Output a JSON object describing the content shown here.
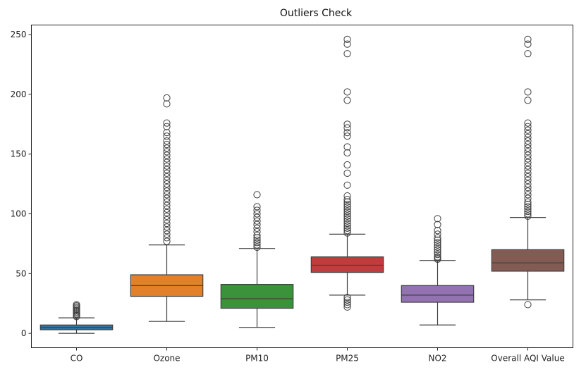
{
  "chart_data": {
    "type": "box",
    "title": "Outliers Check",
    "xlabel": "",
    "ylabel": "",
    "ylim": [
      -12,
      258
    ],
    "yticks": [
      0,
      50,
      100,
      150,
      200,
      250
    ],
    "grid": false,
    "categories": [
      "CO",
      "Ozone",
      "PM10",
      "PM25",
      "NO2",
      "Overall AQI Value"
    ],
    "colors": [
      "#3274a1",
      "#e1812c",
      "#3a923a",
      "#c03d3e",
      "#9372b2",
      "#845b53"
    ],
    "boxes": [
      {
        "name": "CO",
        "whislo": 0,
        "q1": 3,
        "med": 5,
        "q3": 7,
        "whishi": 13,
        "fliers": [
          14,
          15,
          16,
          17,
          18,
          19,
          20,
          21,
          22,
          23,
          24
        ]
      },
      {
        "name": "Ozone",
        "whislo": 10,
        "q1": 31,
        "med": 40,
        "q3": 49,
        "whishi": 74,
        "fliers": [
          77,
          80,
          83,
          86,
          89,
          92,
          95,
          98,
          101,
          104,
          107,
          110,
          113,
          116,
          119,
          122,
          125,
          128,
          131,
          134,
          137,
          140,
          143,
          146,
          149,
          152,
          155,
          158,
          161,
          165,
          168,
          173,
          176,
          192,
          197
        ]
      },
      {
        "name": "PM10",
        "whislo": 5,
        "q1": 21,
        "med": 29,
        "q3": 41,
        "whishi": 71,
        "fliers": [
          72,
          74,
          76,
          78,
          80,
          82,
          85,
          88,
          91,
          94,
          97,
          100,
          103,
          106,
          116
        ]
      },
      {
        "name": "PM25",
        "whislo": 32,
        "q1": 51,
        "med": 57,
        "q3": 64,
        "whishi": 83,
        "fliers": [
          22,
          24,
          26,
          28,
          30,
          84,
          86,
          88,
          90,
          92,
          94,
          96,
          98,
          100,
          102,
          104,
          106,
          108,
          110,
          112,
          115,
          124,
          134,
          141,
          151,
          156,
          165,
          168,
          172,
          175,
          195,
          202,
          234,
          242,
          246
        ]
      },
      {
        "name": "NO2",
        "whislo": 7,
        "q1": 26,
        "med": 32,
        "q3": 40,
        "whishi": 61,
        "fliers": [
          62,
          63,
          64,
          66,
          68,
          70,
          72,
          74,
          76,
          78,
          80,
          83,
          86,
          91,
          96
        ]
      },
      {
        "name": "Overall AQI Value",
        "whislo": 28,
        "q1": 52,
        "med": 59,
        "q3": 70,
        "whishi": 97,
        "fliers": [
          24,
          98,
          100,
          102,
          104,
          106,
          108,
          110,
          113,
          116,
          119,
          122,
          125,
          128,
          131,
          134,
          137,
          140,
          143,
          146,
          149,
          152,
          155,
          158,
          161,
          164,
          167,
          170,
          173,
          176,
          195,
          202,
          234,
          242,
          246
        ]
      }
    ]
  }
}
